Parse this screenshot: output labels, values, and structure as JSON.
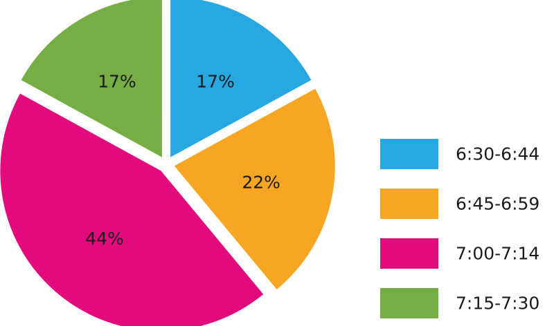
{
  "chart_data": {
    "type": "pie",
    "title": "",
    "legend_position": "right",
    "exploded": true,
    "slices": [
      {
        "label": "6:30-6:44",
        "value": 17,
        "display": "17%",
        "color": "#27a8e0"
      },
      {
        "label": "6:45-6:59",
        "value": 22,
        "display": "22%",
        "color": "#f6a623"
      },
      {
        "label": "7:00-7:14",
        "value": 44,
        "display": "44%",
        "color": "#e20a7d"
      },
      {
        "label": "7:15-7:30",
        "value": 17,
        "display": "17%",
        "color": "#76ad45"
      }
    ]
  }
}
